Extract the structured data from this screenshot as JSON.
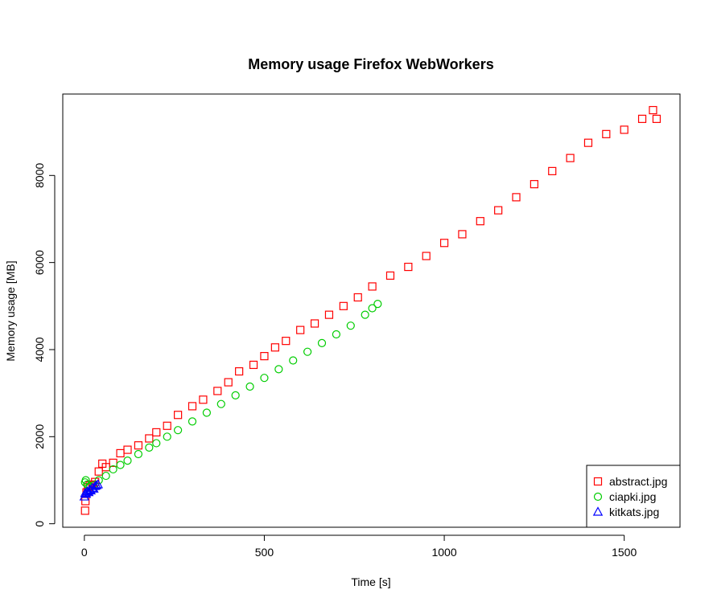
{
  "chart_data": {
    "type": "scatter",
    "title": "Memory usage Firefox WebWorkers",
    "xlabel": "Time [s]",
    "ylabel": "Memory usage [MB]",
    "xlim": [
      -60,
      1655
    ],
    "ylim": [
      -80,
      9870
    ],
    "xticks": [
      0,
      500,
      1000,
      1500
    ],
    "yticks": [
      0,
      2000,
      4000,
      6000,
      8000
    ],
    "grid": false,
    "legend_position": "bottom-right",
    "series": [
      {
        "name": "abstract.jpg",
        "marker": "square",
        "color": "#ff0000",
        "points": [
          [
            2,
            300
          ],
          [
            3,
            520
          ],
          [
            6,
            720
          ],
          [
            10,
            840
          ],
          [
            15,
            880
          ],
          [
            22,
            900
          ],
          [
            30,
            960
          ],
          [
            40,
            1200
          ],
          [
            50,
            1380
          ],
          [
            60,
            1300
          ],
          [
            80,
            1400
          ],
          [
            100,
            1620
          ],
          [
            120,
            1700
          ],
          [
            150,
            1800
          ],
          [
            180,
            1960
          ],
          [
            200,
            2100
          ],
          [
            230,
            2250
          ],
          [
            260,
            2500
          ],
          [
            300,
            2700
          ],
          [
            330,
            2850
          ],
          [
            370,
            3050
          ],
          [
            400,
            3250
          ],
          [
            430,
            3500
          ],
          [
            470,
            3650
          ],
          [
            500,
            3850
          ],
          [
            530,
            4050
          ],
          [
            560,
            4200
          ],
          [
            600,
            4450
          ],
          [
            640,
            4600
          ],
          [
            680,
            4800
          ],
          [
            720,
            5000
          ],
          [
            760,
            5200
          ],
          [
            800,
            5450
          ],
          [
            850,
            5700
          ],
          [
            900,
            5900
          ],
          [
            950,
            6150
          ],
          [
            1000,
            6450
          ],
          [
            1050,
            6650
          ],
          [
            1100,
            6950
          ],
          [
            1150,
            7200
          ],
          [
            1200,
            7500
          ],
          [
            1250,
            7800
          ],
          [
            1300,
            8100
          ],
          [
            1350,
            8400
          ],
          [
            1400,
            8750
          ],
          [
            1450,
            8950
          ],
          [
            1500,
            9050
          ],
          [
            1550,
            9300
          ],
          [
            1580,
            9500
          ],
          [
            1590,
            9300
          ]
        ]
      },
      {
        "name": "ciapki.jpg",
        "marker": "circle",
        "color": "#00cd00",
        "points": [
          [
            2,
            950
          ],
          [
            4,
            1000
          ],
          [
            8,
            900
          ],
          [
            15,
            860
          ],
          [
            25,
            880
          ],
          [
            40,
            1000
          ],
          [
            60,
            1100
          ],
          [
            80,
            1250
          ],
          [
            100,
            1350
          ],
          [
            120,
            1450
          ],
          [
            150,
            1600
          ],
          [
            180,
            1750
          ],
          [
            200,
            1850
          ],
          [
            230,
            2000
          ],
          [
            260,
            2150
          ],
          [
            300,
            2350
          ],
          [
            340,
            2550
          ],
          [
            380,
            2750
          ],
          [
            420,
            2950
          ],
          [
            460,
            3150
          ],
          [
            500,
            3350
          ],
          [
            540,
            3550
          ],
          [
            580,
            3750
          ],
          [
            620,
            3950
          ],
          [
            660,
            4150
          ],
          [
            700,
            4350
          ],
          [
            740,
            4550
          ],
          [
            780,
            4800
          ],
          [
            800,
            4950
          ],
          [
            815,
            5050
          ]
        ]
      },
      {
        "name": "kitkats.jpg",
        "marker": "triangle",
        "color": "#0000ff",
        "points": [
          [
            0,
            620
          ],
          [
            2,
            700
          ],
          [
            5,
            680
          ],
          [
            8,
            740
          ],
          [
            12,
            720
          ],
          [
            15,
            780
          ],
          [
            18,
            760
          ],
          [
            22,
            820
          ],
          [
            26,
            800
          ],
          [
            30,
            860
          ],
          [
            34,
            880
          ],
          [
            38,
            900
          ]
        ]
      }
    ]
  }
}
